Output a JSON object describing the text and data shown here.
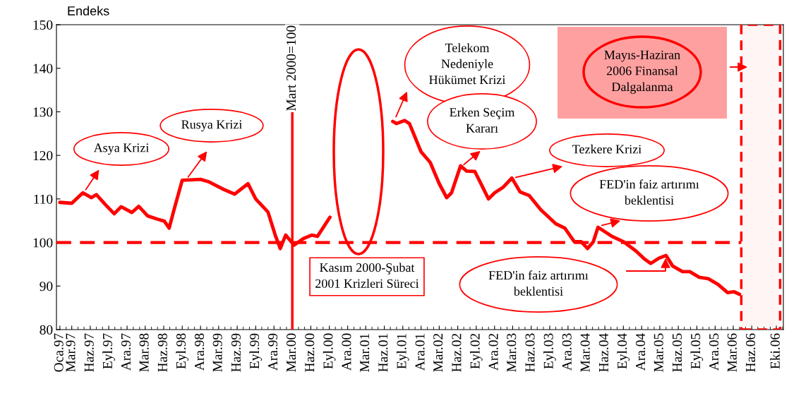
{
  "chart_data": {
    "type": "line",
    "ylabel": "Endeks",
    "x": [
      "1997-01-01",
      "1997-03-01",
      "1997-04-25",
      "1997-06-07",
      "1997-07-01",
      "1997-08-15",
      "1997-09-28",
      "1997-11-01",
      "1997-12-25",
      "1998-01-28",
      "1998-03-13",
      "1998-04-28",
      "1998-06-04",
      "1998-06-28",
      "1998-07-22",
      "1998-09-01",
      "1998-12-01",
      "1999-01-13",
      "1999-03-25",
      "1999-05-19",
      "1999-07-25",
      "1999-09-01",
      "1999-11-01",
      "1999-12-07",
      "2000-01-01",
      "2000-01-28",
      "2000-03-10",
      "2000-04-25",
      "2000-06-07",
      "2000-07-04",
      "2000-09-04",
      "2000-12-01",
      "2001-07-13",
      "2001-08-01",
      "2001-09-10",
      "2001-10-04",
      "2001-12-01",
      "2002-01-15",
      "2002-03-01",
      "2002-04-07",
      "2002-05-01",
      "2002-06-15",
      "2002-07-15",
      "2002-08-25",
      "2002-11-01",
      "2002-12-01",
      "2003-01-13",
      "2003-02-25",
      "2003-04-07",
      "2003-05-22",
      "2003-07-19",
      "2003-10-01",
      "2003-11-15",
      "2004-01-01",
      "2004-02-04",
      "2004-03-07",
      "2004-04-04",
      "2004-04-28",
      "2004-07-07",
      "2004-09-01",
      "2004-11-01",
      "2004-12-15",
      "2005-01-15",
      "2005-02-25",
      "2005-04-01",
      "2005-05-04",
      "2005-06-22",
      "2005-07-28",
      "2005-09-13",
      "2005-10-28",
      "2005-12-15",
      "2006-02-01",
      "2006-03-04",
      "2006-04-01"
    ],
    "series": [
      {
        "color": "#ff0000",
        "values": [
          109.2,
          109,
          111.4,
          110.3,
          111,
          108.7,
          106.6,
          108.2,
          106.9,
          108.3,
          106.1,
          105.4,
          104.9,
          103.3,
          107.5,
          114.3,
          114.5,
          113.9,
          112.2,
          111.1,
          113.5,
          110,
          107,
          101.7,
          98.6,
          101.7,
          99.4,
          100.9,
          101.7,
          101.4,
          105.8,
          null,
          127.8,
          127.3,
          128,
          127.3,
          120.8,
          118.4,
          113.5,
          110.3,
          111.4,
          117.6,
          116.4,
          116.3,
          110,
          111.4,
          112.7,
          114.8,
          111.6,
          110.8,
          107.5,
          104.3,
          103.3,
          100.2,
          100.2,
          98.6,
          100.1,
          103.5,
          101.4,
          100.2,
          98.1,
          96.2,
          95.2,
          96.4,
          97,
          94.6,
          93.3,
          93.3,
          92,
          91.7,
          90.4,
          88.5,
          88.7,
          88.1
        ]
      }
    ],
    "xlim": [
      "1996-12-15",
      "2006-11-05"
    ],
    "xticks": [
      {
        "value": "1997-01-01",
        "label": "Oca.97"
      },
      {
        "value": "1997-03-01",
        "label": "Mar.97"
      },
      {
        "value": "1997-06-01",
        "label": "Haz.97"
      },
      {
        "value": "1997-09-01",
        "label": "Eyl.97"
      },
      {
        "value": "1997-12-01",
        "label": "Ara.97"
      },
      {
        "value": "1998-03-01",
        "label": "Mar.98"
      },
      {
        "value": "1998-06-01",
        "label": "Haz.98"
      },
      {
        "value": "1998-09-01",
        "label": "Eyl.98"
      },
      {
        "value": "1998-12-01",
        "label": "Ara.98"
      },
      {
        "value": "1999-03-01",
        "label": "Mar.99"
      },
      {
        "value": "1999-06-01",
        "label": "Haz.99"
      },
      {
        "value": "1999-09-01",
        "label": "Eyl.99"
      },
      {
        "value": "1999-12-01",
        "label": "Ara.99"
      },
      {
        "value": "2000-03-01",
        "label": "Mar.00"
      },
      {
        "value": "2000-06-01",
        "label": "Haz.00"
      },
      {
        "value": "2000-09-01",
        "label": "Eyl.00"
      },
      {
        "value": "2000-12-01",
        "label": "Ara.00"
      },
      {
        "value": "2001-03-01",
        "label": "Mar.01"
      },
      {
        "value": "2001-06-01",
        "label": "Haz.01"
      },
      {
        "value": "2001-09-01",
        "label": "Eyl.01"
      },
      {
        "value": "2001-12-01",
        "label": "Ara.01"
      },
      {
        "value": "2002-03-01",
        "label": "Mar.02"
      },
      {
        "value": "2002-06-01",
        "label": "Haz.02"
      },
      {
        "value": "2002-09-01",
        "label": "Eyl.02"
      },
      {
        "value": "2002-12-01",
        "label": "Ara.02"
      },
      {
        "value": "2003-03-01",
        "label": "Mar.03"
      },
      {
        "value": "2003-06-01",
        "label": "Haz.03"
      },
      {
        "value": "2003-09-01",
        "label": "Eyl.03"
      },
      {
        "value": "2003-12-01",
        "label": "Ara.03"
      },
      {
        "value": "2004-03-01",
        "label": "Mar.04"
      },
      {
        "value": "2004-06-01",
        "label": "Haz.04"
      },
      {
        "value": "2004-09-01",
        "label": "Eyl.04"
      },
      {
        "value": "2004-12-01",
        "label": "Ara.04"
      },
      {
        "value": "2005-03-01",
        "label": "Mar.05"
      },
      {
        "value": "2005-06-01",
        "label": "Haz.05"
      },
      {
        "value": "2005-09-01",
        "label": "Eyl.05"
      },
      {
        "value": "2005-12-01",
        "label": "Ara.05"
      },
      {
        "value": "2006-03-01",
        "label": "Mar.06"
      },
      {
        "value": "2006-06-01",
        "label": "Haz.06"
      },
      {
        "value": "2006-10-01",
        "label": "Eki.06"
      }
    ],
    "ylim": [
      80,
      150
    ],
    "yticks": [
      80,
      90,
      100,
      110,
      120,
      130,
      140,
      150
    ],
    "grid": false,
    "line_style": "solid",
    "marker": "none",
    "ref_lines": [
      {
        "axis": "y",
        "value": 100,
        "color": "#ff0000",
        "line_style": "dashed"
      },
      {
        "axis": "x",
        "value": "2000-03-01",
        "label": "Mart 2000=100",
        "color": "#ff0000",
        "line_style": "solid"
      }
    ],
    "bands": [
      {
        "axis": "x",
        "from": "2006-04-10",
        "to": "2006-10-20",
        "color": "#ff0000"
      }
    ],
    "annotations": [
      "Asya Krizi",
      "Rusya Krizi",
      "Telekom\nNedeniyle\nHükümet Krizi",
      "Erken Seçim\nKararı",
      "Tezkere Krizi",
      "FED'in faiz artırımı\nbeklentisi",
      "FED'in faiz artırımı\nbeklentisi",
      "Mayıs-Haziran\n2006 Finansal\nDalgalanma",
      "Kasım 2000-Şubat\n2001 Krizleri Süreci"
    ]
  }
}
